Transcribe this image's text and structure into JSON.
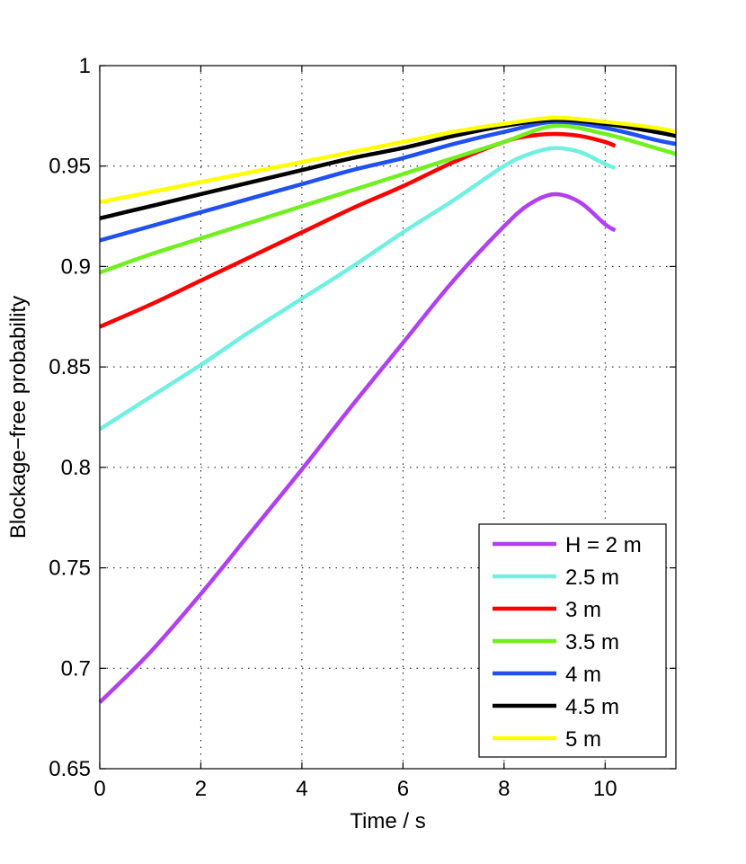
{
  "chart_data": {
    "type": "line",
    "title": "",
    "xlabel": "Time / s",
    "ylabel": "Blockage−free probability",
    "xlim": [
      0,
      11.4
    ],
    "ylim": [
      0.65,
      1.0
    ],
    "xticks": [
      0,
      2,
      4,
      6,
      8,
      10
    ],
    "xtick_labels": [
      "0",
      "2",
      "4",
      "6",
      "8",
      "10"
    ],
    "yticks": [
      0.65,
      0.7,
      0.75,
      0.8,
      0.85,
      0.9,
      0.95,
      1.0
    ],
    "ytick_labels": [
      "0.65",
      "0.7",
      "0.75",
      "0.8",
      "0.85",
      "0.9",
      "0.95",
      "1"
    ],
    "grid": true,
    "legend_position": "bottom-right",
    "series": [
      {
        "name": "H = 2 m",
        "color": "#b040f0",
        "x": [
          0,
          1,
          2,
          3,
          4,
          5,
          6,
          7,
          8,
          8.5,
          9,
          9.5,
          10,
          10.2
        ],
        "y": [
          0.683,
          0.708,
          0.737,
          0.768,
          0.799,
          0.831,
          0.862,
          0.893,
          0.92,
          0.931,
          0.936,
          0.932,
          0.921,
          0.918
        ]
      },
      {
        "name": "2.5 m",
        "color": "#70f0e0",
        "x": [
          0,
          1,
          2,
          3,
          4,
          5,
          6,
          7,
          8,
          8.5,
          9,
          9.5,
          10,
          10.2
        ],
        "y": [
          0.819,
          0.835,
          0.851,
          0.868,
          0.884,
          0.9,
          0.917,
          0.933,
          0.95,
          0.956,
          0.959,
          0.957,
          0.951,
          0.949
        ]
      },
      {
        "name": "3 m",
        "color": "#ff0000",
        "x": [
          0,
          1,
          2,
          3,
          4,
          5,
          6,
          7,
          8,
          8.5,
          9,
          9.5,
          10,
          10.2
        ],
        "y": [
          0.87,
          0.881,
          0.893,
          0.905,
          0.917,
          0.929,
          0.94,
          0.952,
          0.962,
          0.965,
          0.966,
          0.965,
          0.962,
          0.96
        ]
      },
      {
        "name": "3.5 m",
        "color": "#70f020",
        "x": [
          0,
          1,
          2,
          3,
          4,
          5,
          6,
          7,
          8,
          9,
          10,
          11,
          11.4
        ],
        "y": [
          0.897,
          0.906,
          0.914,
          0.922,
          0.93,
          0.938,
          0.946,
          0.954,
          0.962,
          0.97,
          0.966,
          0.959,
          0.956
        ]
      },
      {
        "name": "4 m",
        "color": "#2050f0",
        "x": [
          0,
          1,
          2,
          3,
          4,
          5,
          6,
          7,
          8,
          9,
          10,
          11,
          11.4
        ],
        "y": [
          0.913,
          0.92,
          0.927,
          0.934,
          0.941,
          0.948,
          0.954,
          0.961,
          0.967,
          0.972,
          0.969,
          0.963,
          0.961
        ]
      },
      {
        "name": "4.5 m",
        "color": "#000000",
        "x": [
          0,
          1,
          2,
          3,
          4,
          5,
          6,
          7,
          8,
          9,
          10,
          11,
          11.4
        ],
        "y": [
          0.924,
          0.93,
          0.936,
          0.942,
          0.948,
          0.954,
          0.959,
          0.965,
          0.97,
          0.973,
          0.971,
          0.967,
          0.965
        ]
      },
      {
        "name": "5 m",
        "color": "#ffff00",
        "x": [
          0,
          1,
          2,
          3,
          4,
          5,
          6,
          7,
          8,
          9,
          10,
          11,
          11.4
        ],
        "y": [
          0.932,
          0.937,
          0.942,
          0.947,
          0.952,
          0.957,
          0.962,
          0.967,
          0.971,
          0.974,
          0.972,
          0.969,
          0.967
        ]
      }
    ]
  }
}
